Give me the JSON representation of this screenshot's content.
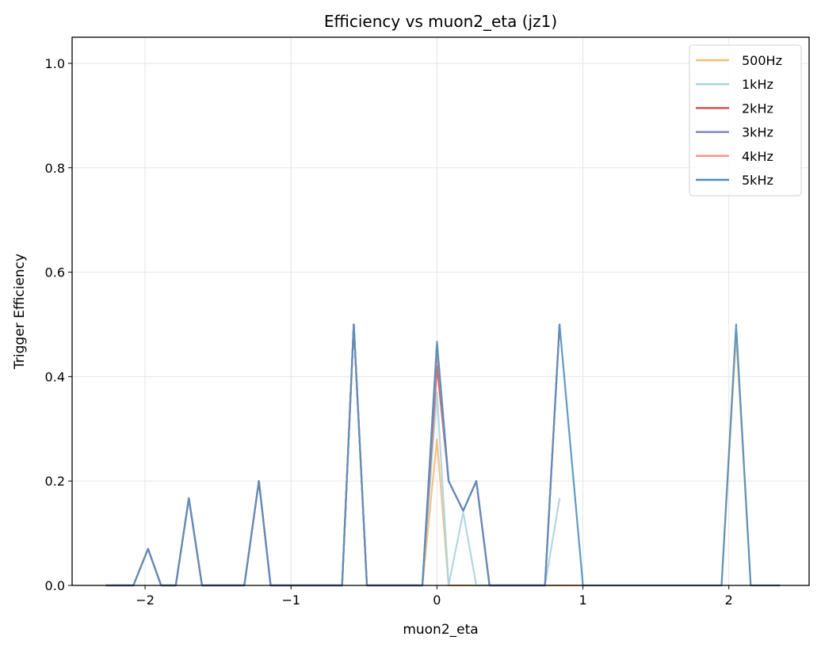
{
  "chart_data": {
    "type": "line",
    "title": "Efficiency vs muon2_eta (jz1)",
    "xlabel": "muon2_eta",
    "ylabel": "Trigger Efficiency",
    "xlim": [
      -2.5,
      2.55
    ],
    "ylim": [
      0.0,
      1.05
    ],
    "xticks": [
      -2,
      -1,
      0,
      1,
      2
    ],
    "xtick_labels": [
      "−2",
      "−1",
      "0",
      "1",
      "2"
    ],
    "yticks": [
      0.0,
      0.2,
      0.4,
      0.6,
      0.8,
      1.0
    ],
    "ytick_labels": [
      "0.0",
      "0.2",
      "0.4",
      "0.6",
      "0.8",
      "1.0"
    ],
    "grid": true,
    "legend_position": "top-right",
    "series": [
      {
        "name": "500Hz",
        "color": "#f4b978",
        "points": [
          [
            -2.27,
            0
          ],
          [
            -2.08,
            0
          ],
          [
            -1.98,
            0.07
          ],
          [
            -1.89,
            0
          ],
          [
            -1.79,
            0
          ],
          [
            -1.7,
            0.167
          ],
          [
            -1.61,
            0
          ],
          [
            -1.32,
            0
          ],
          [
            -1.22,
            0.2
          ],
          [
            -1.14,
            0
          ],
          [
            -0.65,
            0
          ],
          [
            -0.57,
            0.5
          ],
          [
            -0.48,
            0
          ],
          [
            -0.1,
            0
          ],
          [
            0.0,
            0.28
          ],
          [
            0.08,
            0
          ],
          [
            0.36,
            0
          ],
          [
            1.95,
            0
          ],
          [
            2.05,
            0.48
          ],
          [
            2.15,
            0
          ],
          [
            2.35,
            0
          ]
        ]
      },
      {
        "name": "1kHz",
        "color": "#a7d3dd",
        "points": [
          [
            -2.27,
            0
          ],
          [
            -2.08,
            0
          ],
          [
            -1.98,
            0.07
          ],
          [
            -1.89,
            0
          ],
          [
            -1.79,
            0
          ],
          [
            -1.7,
            0.167
          ],
          [
            -1.61,
            0
          ],
          [
            -1.32,
            0
          ],
          [
            -1.22,
            0.2
          ],
          [
            -1.14,
            0
          ],
          [
            -0.65,
            0
          ],
          [
            -0.57,
            0.5
          ],
          [
            -0.48,
            0
          ],
          [
            -0.1,
            0
          ],
          [
            0.0,
            0.37
          ],
          [
            0.08,
            0
          ],
          [
            0.18,
            0.14
          ],
          [
            0.27,
            0
          ],
          [
            0.74,
            0
          ],
          [
            0.84,
            0.167
          ]
        ]
      },
      {
        "name": "2kHz",
        "color": "#d35450",
        "points": [
          [
            -2.27,
            0
          ],
          [
            -2.08,
            0
          ],
          [
            -1.98,
            0.07
          ],
          [
            -1.89,
            0
          ],
          [
            -1.79,
            0
          ],
          [
            -1.7,
            0.167
          ],
          [
            -1.61,
            0
          ],
          [
            -1.32,
            0
          ],
          [
            -1.22,
            0.2
          ],
          [
            -1.14,
            0
          ],
          [
            -0.65,
            0
          ],
          [
            -0.57,
            0.5
          ],
          [
            -0.48,
            0
          ],
          [
            -0.1,
            0
          ],
          [
            0.0,
            0.42
          ],
          [
            0.08,
            0.2
          ],
          [
            0.18,
            0.143
          ],
          [
            0.27,
            0.2
          ],
          [
            0.36,
            0
          ],
          [
            0.74,
            0
          ],
          [
            0.84,
            0.5
          ]
        ]
      },
      {
        "name": "3kHz",
        "color": "#8487ba",
        "points": [
          [
            -2.27,
            0
          ],
          [
            -2.08,
            0
          ],
          [
            -1.98,
            0.07
          ],
          [
            -1.89,
            0
          ],
          [
            -1.79,
            0
          ],
          [
            -1.7,
            0.167
          ],
          [
            -1.61,
            0
          ],
          [
            -1.32,
            0
          ],
          [
            -1.22,
            0.2
          ],
          [
            -1.14,
            0
          ],
          [
            -0.65,
            0
          ],
          [
            -0.57,
            0.5
          ],
          [
            -0.48,
            0
          ],
          [
            -0.1,
            0
          ],
          [
            0.0,
            0.45
          ],
          [
            0.08,
            0.2
          ],
          [
            0.18,
            0.143
          ],
          [
            0.27,
            0.2
          ],
          [
            0.36,
            0
          ],
          [
            0.74,
            0
          ],
          [
            0.84,
            0.5
          ]
        ]
      },
      {
        "name": "4kHz",
        "color": "#f4978e",
        "points": [
          [
            -2.27,
            0
          ],
          [
            -2.08,
            0
          ],
          [
            -1.98,
            0.07
          ],
          [
            -1.89,
            0
          ],
          [
            -1.79,
            0
          ],
          [
            -1.7,
            0.167
          ],
          [
            -1.61,
            0
          ],
          [
            -1.32,
            0
          ],
          [
            -1.22,
            0.2
          ],
          [
            -1.14,
            0
          ],
          [
            -0.65,
            0
          ],
          [
            -0.57,
            0.5
          ],
          [
            -0.48,
            0
          ],
          [
            -0.1,
            0
          ],
          [
            0.0,
            0.46
          ],
          [
            0.08,
            0.2
          ],
          [
            0.18,
            0.143
          ],
          [
            0.27,
            0.2
          ],
          [
            0.36,
            0
          ],
          [
            0.74,
            0
          ],
          [
            0.84,
            0.5
          ]
        ]
      },
      {
        "name": "5kHz",
        "color": "#4a8cbf",
        "points": [
          [
            -2.27,
            0
          ],
          [
            -2.08,
            0
          ],
          [
            -1.98,
            0.07
          ],
          [
            -1.89,
            0
          ],
          [
            -1.79,
            0
          ],
          [
            -1.7,
            0.167
          ],
          [
            -1.61,
            0
          ],
          [
            -1.32,
            0
          ],
          [
            -1.22,
            0.2
          ],
          [
            -1.14,
            0
          ],
          [
            -0.65,
            0
          ],
          [
            -0.57,
            0.5
          ],
          [
            -0.48,
            0
          ],
          [
            -0.1,
            0
          ],
          [
            0.0,
            0.467
          ],
          [
            0.08,
            0.2
          ],
          [
            0.18,
            0.143
          ],
          [
            0.27,
            0.2
          ],
          [
            0.36,
            0
          ],
          [
            0.74,
            0
          ],
          [
            0.84,
            0.5
          ],
          [
            1.0,
            0
          ],
          [
            1.95,
            0
          ],
          [
            2.05,
            0.5
          ],
          [
            2.15,
            0
          ],
          [
            2.35,
            0
          ]
        ]
      }
    ]
  }
}
